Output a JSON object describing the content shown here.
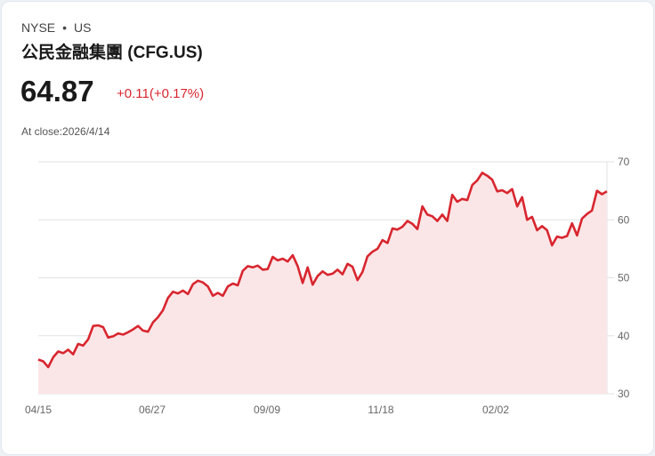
{
  "header": {
    "exchange": "NYSE",
    "region": "US",
    "separator": "•",
    "title": "公民金融集團 (CFG.US)",
    "price": "64.87",
    "change": "+0.11(+0.17%)",
    "close_label": "At close:2026/4/14"
  },
  "colors": {
    "line": "#d8262f",
    "fill": "#fbe6e7",
    "grid": "#e2e2e2",
    "up": "#d8262f"
  },
  "chart_data": {
    "type": "area",
    "title": "公民金融集團 (CFG.US)",
    "xlabel": "",
    "ylabel": "",
    "ylim": [
      30,
      70
    ],
    "yticks": [
      30,
      40,
      50,
      60,
      70
    ],
    "xtick_labels": [
      "04/15",
      "06/27",
      "09/09",
      "11/18",
      "02/02"
    ],
    "grid": true,
    "y_axis_position": "right",
    "series": [
      {
        "name": "CFG.US",
        "values": [
          35.9,
          35.6,
          34.6,
          36.3,
          37.3,
          37.0,
          37.6,
          36.8,
          38.6,
          38.3,
          39.4,
          41.7,
          41.8,
          41.5,
          39.7,
          39.9,
          40.4,
          40.2,
          40.6,
          41.1,
          41.7,
          40.9,
          40.7,
          42.3,
          43.2,
          44.4,
          46.5,
          47.6,
          47.3,
          47.8,
          47.2,
          48.9,
          49.5,
          49.2,
          48.5,
          46.9,
          47.4,
          46.9,
          48.5,
          49.0,
          48.7,
          51.2,
          52.0,
          51.8,
          52.1,
          51.4,
          51.5,
          53.6,
          53.0,
          53.3,
          52.8,
          53.9,
          52.0,
          49.1,
          51.8,
          48.8,
          50.3,
          51.1,
          50.5,
          50.7,
          51.4,
          50.6,
          52.4,
          51.9,
          49.6,
          51.0,
          53.7,
          54.5,
          55.0,
          56.5,
          56.0,
          58.5,
          58.3,
          58.8,
          59.8,
          59.3,
          58.4,
          62.3,
          60.9,
          60.6,
          59.8,
          60.9,
          59.8,
          64.3,
          63.1,
          63.6,
          63.4,
          66.0,
          66.8,
          68.1,
          67.6,
          66.9,
          64.9,
          65.1,
          64.6,
          65.3,
          62.3,
          63.9,
          60.0,
          60.5,
          58.2,
          58.9,
          58.2,
          55.6,
          57.1,
          56.9,
          57.2,
          59.4,
          57.3,
          60.2,
          61.0,
          61.6,
          65.0,
          64.4,
          64.9
        ]
      }
    ]
  }
}
